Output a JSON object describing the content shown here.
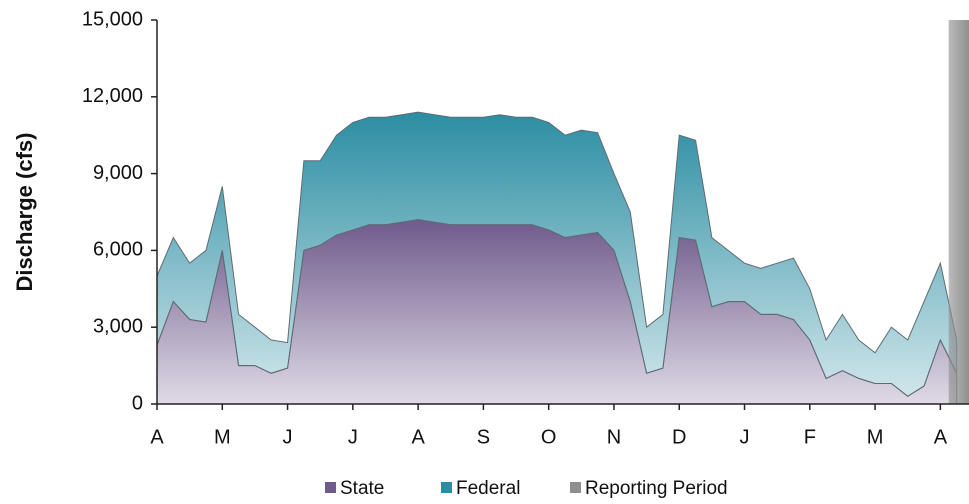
{
  "chart_data": {
    "type": "area",
    "stacked": true,
    "y_label": "Discharge (cfs)",
    "categories": [
      "A",
      null,
      null,
      null,
      "M",
      null,
      null,
      null,
      "J",
      null,
      null,
      null,
      "J",
      null,
      null,
      null,
      "A",
      null,
      null,
      null,
      "S",
      null,
      null,
      null,
      "O",
      null,
      null,
      null,
      "N",
      null,
      null,
      null,
      "D",
      null,
      null,
      null,
      "J",
      null,
      null,
      null,
      "F",
      null,
      null,
      null,
      "M",
      null,
      null,
      null,
      "A",
      null
    ],
    "series": [
      {
        "name": "State",
        "color": "#6f5a8c",
        "values": [
          2300,
          4000,
          3300,
          3200,
          6000,
          1500,
          1500,
          1200,
          1400,
          6000,
          6200,
          6600,
          6800,
          7000,
          7000,
          7100,
          7200,
          7100,
          7000,
          7000,
          7000,
          7000,
          7000,
          7000,
          6800,
          6500,
          6600,
          6700,
          6000,
          4000,
          1200,
          1400,
          6500,
          6400,
          3800,
          4000,
          4000,
          3500,
          3500,
          3300,
          2500,
          1000,
          1300,
          1000,
          800,
          800,
          300,
          700,
          2500,
          1200
        ]
      },
      {
        "name": "Federal",
        "color": "#2b8da2",
        "values": [
          2700,
          2500,
          2200,
          2800,
          2500,
          2000,
          1500,
          1300,
          1000,
          3500,
          3300,
          3900,
          4200,
          4200,
          4200,
          4200,
          4200,
          4200,
          4200,
          4200,
          4200,
          4300,
          4200,
          4200,
          4200,
          4000,
          4100,
          3900,
          3000,
          3500,
          1800,
          2100,
          4000,
          3900,
          2700,
          2000,
          1500,
          1800,
          2000,
          2400,
          2000,
          1500,
          2200,
          1500,
          1200,
          2200,
          2200,
          3300,
          3000,
          1300
        ]
      },
      {
        "name": "Reporting Period",
        "color": "#8e8e8e",
        "kind": "band",
        "values": [
          null,
          null,
          null,
          null,
          null,
          null,
          null,
          null,
          null,
          null,
          null,
          null,
          null,
          null,
          null,
          null,
          null,
          null,
          null,
          null,
          null,
          null,
          null,
          null,
          null,
          null,
          null,
          null,
          null,
          null,
          null,
          null,
          null,
          null,
          null,
          null,
          null,
          null,
          null,
          null,
          null,
          null,
          null,
          null,
          null,
          null,
          null,
          null,
          null,
          15000
        ]
      }
    ],
    "ylim": [
      0,
      15000
    ],
    "yticks": [
      0,
      {
        "value": 3000,
        "label": "3,000"
      },
      {
        "value": 6000,
        "label": "6,000"
      },
      {
        "value": 9000,
        "label": "9,000"
      },
      {
        "value": 12000,
        "label": "12,000"
      },
      {
        "value": 15000,
        "label": "15,000"
      }
    ],
    "legend": "bottom"
  }
}
